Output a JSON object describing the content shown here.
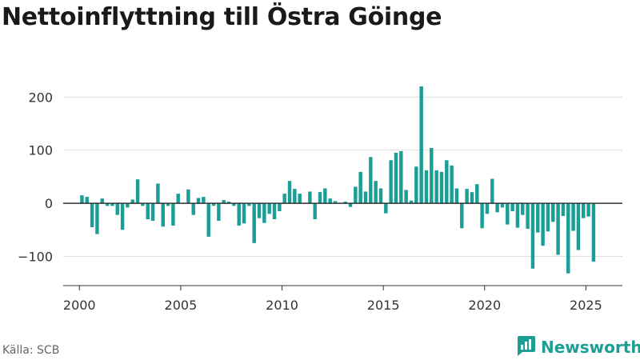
{
  "header": {
    "title": "Nettoinflyttning till Östra Göinge"
  },
  "footer": {
    "source": "Källa: SCB",
    "brand": "Newsworthy"
  },
  "colors": {
    "bar": "#1a9e96",
    "brand": "#1d9e94",
    "grid": "#dddddd",
    "axis": "#333333"
  },
  "icons": {
    "brand": "newsworthy-logo-icon"
  },
  "chart_data": {
    "type": "bar",
    "title": "Nettoinflyttning till Östra Göinge",
    "xlabel": "",
    "ylabel": "",
    "ylim": [
      -155,
      232
    ],
    "xlim": [
      1999.2,
      2026.8
    ],
    "yticks": [
      -100,
      0,
      100,
      200
    ],
    "xticks": [
      2000,
      2005,
      2010,
      2015,
      2020,
      2025
    ],
    "ytick_labels": [
      "−100",
      "0",
      "100",
      "200"
    ],
    "xtick_labels": [
      "2000",
      "2005",
      "2010",
      "2015",
      "2020",
      "2025"
    ],
    "grid": true,
    "bar_interval": "quarter",
    "x": [
      2000.0,
      2000.25,
      2000.5,
      2000.75,
      2001.0,
      2001.25,
      2001.5,
      2001.75,
      2002.0,
      2002.25,
      2002.5,
      2002.75,
      2003.0,
      2003.25,
      2003.5,
      2003.75,
      2004.0,
      2004.25,
      2004.5,
      2004.75,
      2005.0,
      2005.25,
      2005.5,
      2005.75,
      2006.0,
      2006.25,
      2006.5,
      2006.75,
      2007.0,
      2007.25,
      2007.5,
      2007.75,
      2008.0,
      2008.25,
      2008.5,
      2008.75,
      2009.0,
      2009.25,
      2009.5,
      2009.75,
      2010.0,
      2010.25,
      2010.5,
      2010.75,
      2011.0,
      2011.25,
      2011.5,
      2011.75,
      2012.0,
      2012.25,
      2012.5,
      2012.75,
      2013.0,
      2013.25,
      2013.5,
      2013.75,
      2014.0,
      2014.25,
      2014.5,
      2014.75,
      2015.0,
      2015.25,
      2015.5,
      2015.75,
      2016.0,
      2016.25,
      2016.5,
      2016.75,
      2017.0,
      2017.25,
      2017.5,
      2017.75,
      2018.0,
      2018.25,
      2018.5,
      2018.75,
      2019.0,
      2019.25,
      2019.5,
      2019.75,
      2020.0,
      2020.25,
      2020.5,
      2020.75,
      2021.0,
      2021.25,
      2021.5,
      2021.75,
      2022.0,
      2022.25,
      2022.5,
      2022.75,
      2023.0,
      2023.25,
      2023.5,
      2023.75,
      2024.0,
      2024.25,
      2024.5,
      2024.75,
      2025.0,
      2025.25
    ],
    "values": [
      15,
      12,
      -45,
      -58,
      9,
      -5,
      -5,
      -22,
      -50,
      -8,
      7,
      45,
      -5,
      -30,
      -33,
      37,
      -44,
      -5,
      -42,
      18,
      1,
      26,
      -22,
      10,
      12,
      -63,
      -5,
      -33,
      6,
      3,
      -5,
      -42,
      -38,
      -5,
      -75,
      -28,
      -37,
      -20,
      -30,
      -15,
      18,
      42,
      27,
      18,
      -1,
      22,
      -30,
      21,
      28,
      9,
      4,
      1,
      3,
      -7,
      31,
      59,
      22,
      87,
      42,
      28,
      -19,
      81,
      95,
      98,
      25,
      5,
      69,
      220,
      62,
      104,
      62,
      59,
      81,
      71,
      28,
      -47,
      27,
      21,
      36,
      -47,
      -20,
      46,
      -17,
      -8,
      -40,
      -15,
      -46,
      -22,
      -48,
      -123,
      -55,
      -80,
      -53,
      -35,
      -97,
      -24,
      -132,
      -52,
      -88,
      -28,
      -25,
      -110
    ]
  }
}
